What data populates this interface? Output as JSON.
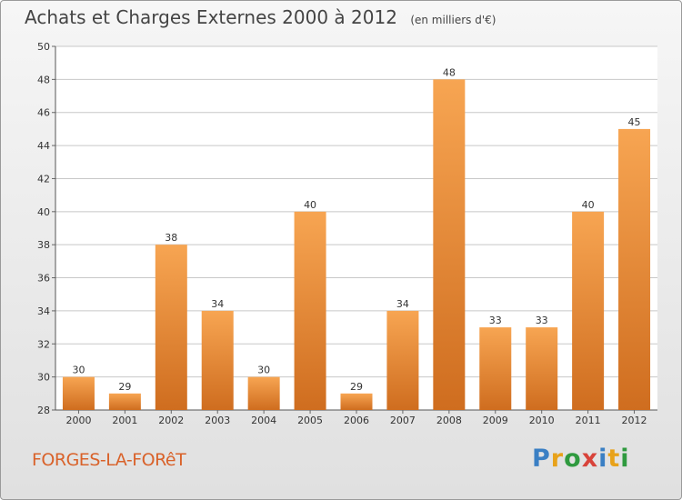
{
  "header": {
    "title": "Achats et Charges Externes 2000 à 2012",
    "unit": "(en milliers d'€)"
  },
  "footer": {
    "commune": "FORGES-LA-FORêT",
    "logo_letters": [
      "P",
      "r",
      "o",
      "x",
      "i",
      "t",
      "i"
    ]
  },
  "chart_data": {
    "type": "bar",
    "categories": [
      "2000",
      "2001",
      "2002",
      "2003",
      "2004",
      "2005",
      "2006",
      "2007",
      "2008",
      "2009",
      "2010",
      "2011",
      "2012"
    ],
    "values": [
      30,
      29,
      38,
      34,
      30,
      40,
      29,
      34,
      48,
      33,
      33,
      40,
      45
    ],
    "ylim": [
      28,
      50
    ],
    "yticks": [
      28,
      30,
      32,
      34,
      36,
      38,
      40,
      42,
      44,
      46,
      48,
      50
    ],
    "grid": true,
    "data_labels": true,
    "colors": {
      "bar_light": "#f7a552",
      "bar_dark": "#cf6d1f",
      "grid": "#c8c8c8"
    }
  }
}
